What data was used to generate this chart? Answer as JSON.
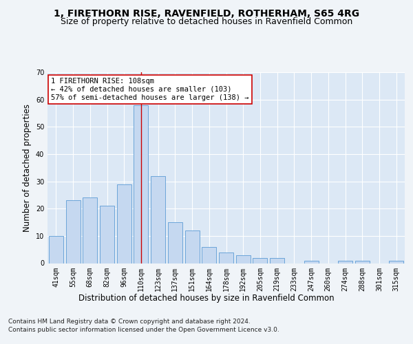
{
  "title": "1, FIRETHORN RISE, RAVENFIELD, ROTHERHAM, S65 4RG",
  "subtitle": "Size of property relative to detached houses in Ravenfield Common",
  "xlabel": "Distribution of detached houses by size in Ravenfield Common",
  "ylabel": "Number of detached properties",
  "footnote1": "Contains HM Land Registry data © Crown copyright and database right 2024.",
  "footnote2": "Contains public sector information licensed under the Open Government Licence v3.0.",
  "categories": [
    "41sqm",
    "55sqm",
    "68sqm",
    "82sqm",
    "96sqm",
    "110sqm",
    "123sqm",
    "137sqm",
    "151sqm",
    "164sqm",
    "178sqm",
    "192sqm",
    "205sqm",
    "219sqm",
    "233sqm",
    "247sqm",
    "260sqm",
    "274sqm",
    "288sqm",
    "301sqm",
    "315sqm"
  ],
  "values": [
    10,
    23,
    24,
    21,
    29,
    58,
    32,
    15,
    12,
    6,
    4,
    3,
    2,
    2,
    0,
    1,
    0,
    1,
    1,
    0,
    1
  ],
  "bar_color": "#c5d8f0",
  "bar_edge_color": "#5b9bd5",
  "highlight_index": 5,
  "highlight_line_color": "#cc0000",
  "annotation_text": "1 FIRETHORN RISE: 108sqm\n← 42% of detached houses are smaller (103)\n57% of semi-detached houses are larger (138) →",
  "annotation_box_color": "#ffffff",
  "annotation_box_edge": "#cc0000",
  "ylim": [
    0,
    70
  ],
  "yticks": [
    0,
    10,
    20,
    30,
    40,
    50,
    60,
    70
  ],
  "fig_bg_color": "#f0f4f8",
  "plot_bg_color": "#dce8f5",
  "grid_color": "#ffffff",
  "title_fontsize": 10,
  "subtitle_fontsize": 9,
  "label_fontsize": 8.5,
  "tick_fontsize": 7,
  "footnote_fontsize": 6.5,
  "annotation_fontsize": 7.5
}
